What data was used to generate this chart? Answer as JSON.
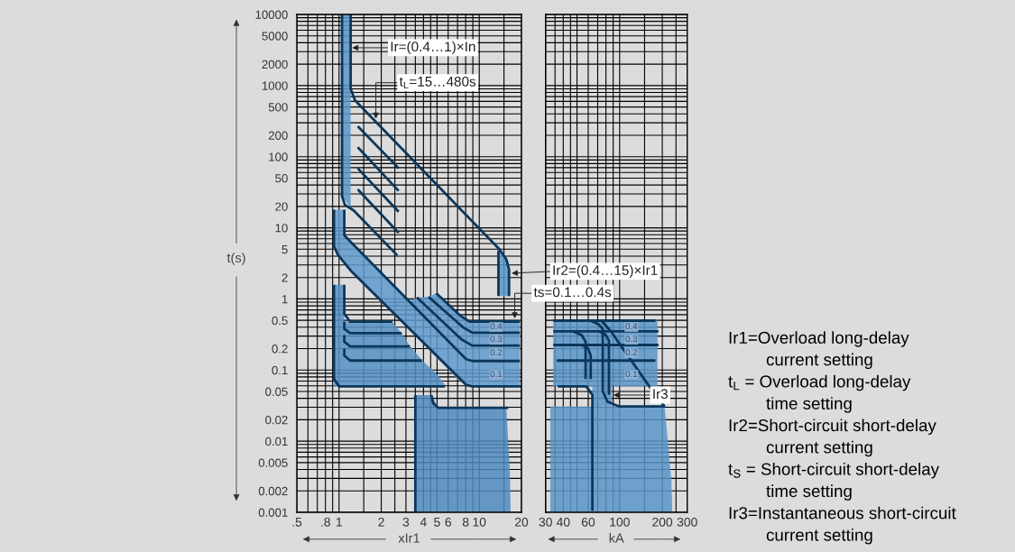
{
  "chart_data": [
    {
      "type": "line",
      "xlabel": "xIr1",
      "ylabel": "t(s)",
      "log": "xy",
      "grid": true,
      "xlim": [
        0.5,
        20
      ],
      "ylim": [
        0.001,
        10000
      ],
      "xticks": [
        {
          "value": 0.5,
          "label": ".5"
        },
        {
          "value": 0.6,
          "label": null
        },
        {
          "value": 0.7,
          "label": null
        },
        {
          "value": 0.8,
          "label": ".8"
        },
        {
          "value": 0.9,
          "label": null
        },
        1,
        {
          "value": 1.5,
          "label": null
        },
        2,
        {
          "value": 2.5,
          "label": null
        },
        3,
        {
          "value": 3.5,
          "label": null
        },
        4,
        {
          "value": 4.5,
          "label": null
        },
        5,
        6,
        {
          "value": 7,
          "label": null
        },
        8,
        {
          "value": 9,
          "label": null
        },
        10,
        {
          "value": 15,
          "label": null
        },
        20
      ],
      "yticks": [
        0.001,
        0.002,
        {
          "value": 0.003,
          "label": null
        },
        {
          "value": 0.004,
          "label": null
        },
        0.005,
        {
          "value": 0.006,
          "label": null
        },
        {
          "value": 0.007,
          "label": null
        },
        {
          "value": 0.008,
          "label": null
        },
        {
          "value": 0.009,
          "label": null
        },
        0.01,
        0.02,
        {
          "value": 0.03,
          "label": null
        },
        {
          "value": 0.04,
          "label": null
        },
        0.05,
        {
          "value": 0.06,
          "label": null
        },
        {
          "value": 0.07,
          "label": null
        },
        {
          "value": 0.08,
          "label": null
        },
        {
          "value": 0.09,
          "label": null
        },
        0.1,
        0.2,
        {
          "value": 0.3,
          "label": null
        },
        {
          "value": 0.4,
          "label": null
        },
        0.5,
        {
          "value": 0.6,
          "label": null
        },
        {
          "value": 0.7,
          "label": null
        },
        {
          "value": 0.8,
          "label": null
        },
        {
          "value": 0.9,
          "label": null
        },
        1,
        2,
        {
          "value": 3,
          "label": null
        },
        {
          "value": 4,
          "label": null
        },
        5,
        {
          "value": 6,
          "label": null
        },
        {
          "value": 7,
          "label": null
        },
        {
          "value": 8,
          "label": null
        },
        {
          "value": 9,
          "label": null
        },
        10,
        20,
        {
          "value": 30,
          "label": null
        },
        {
          "value": 40,
          "label": null
        },
        50,
        {
          "value": 60,
          "label": null
        },
        {
          "value": 70,
          "label": null
        },
        {
          "value": 80,
          "label": null
        },
        {
          "value": 90,
          "label": null
        },
        100,
        200,
        {
          "value": 300,
          "label": null
        },
        {
          "value": 400,
          "label": null
        },
        500,
        {
          "value": 600,
          "label": null
        },
        {
          "value": 700,
          "label": null
        },
        {
          "value": 800,
          "label": null
        },
        {
          "value": 900,
          "label": null
        },
        1000,
        2000,
        {
          "value": 3000,
          "label": null
        },
        {
          "value": 4000,
          "label": null
        },
        5000,
        {
          "value": 6000,
          "label": null
        },
        {
          "value": 7000,
          "label": null
        },
        {
          "value": 8000,
          "label": null
        },
        {
          "value": 9000,
          "label": null
        },
        10000
      ],
      "series": [
        {
          "type": "area",
          "color": "#6ea0cc",
          "x": [
            1.05,
            1.21
          ],
          "values": [
            null,
            null
          ],
          "upper": [
            10000,
            10000
          ],
          "lower": [
            28,
            19
          ]
        },
        {
          "type": "area",
          "color": "#6ea0cc",
          "x": [
            13.7,
            16.3
          ],
          "values": [
            null,
            null
          ],
          "upper": [
            4.8,
            3.2
          ],
          "lower": [
            1.1,
            1.1
          ]
        },
        {
          "type": "area",
          "color": "#73a4d0",
          "x": [
            0.92,
            1.09,
            1.09,
            1.92,
            3.15,
            3.59,
            4.35,
            4.93,
            7.3,
            8.5,
            19.5
          ],
          "values": [
            null,
            null,
            null,
            null,
            null,
            null,
            null,
            null,
            null,
            null,
            null
          ],
          "upper": [
            18,
            18,
            7.8,
            2.51,
            0.93,
            1.05,
            1.07,
            1.21,
            0.585,
            0.48,
            0.48
          ],
          "lower": [
            5.5,
            3.09,
            3.09,
            0.997,
            0.37,
            0.285,
            0.194,
            0.151,
            0.069,
            0.059,
            0.059
          ]
        },
        {
          "type": "area",
          "color": "#6a9cc8",
          "x": [
            0.92,
            1.09,
            1.09,
            2.4,
            2.79,
            3.2,
            3.92,
            4.9,
            5.7
          ],
          "values": [
            null,
            null,
            null,
            null,
            null,
            null,
            null,
            null,
            null
          ],
          "upper": [
            1.58,
            1.58,
            0.48,
            0.48,
            0.33,
            0.22,
            0.136,
            0.092,
            0.062
          ],
          "lower": [
            0.059,
            0.059,
            0.059,
            0.059,
            0.059,
            0.059,
            0.059,
            0.059,
            0.059
          ]
        },
        {
          "type": "area",
          "color": "#6597c4",
          "x": [
            3.5,
            4.55,
            5.1,
            15.6,
            16.5,
            16.7
          ],
          "values": [
            null,
            null,
            null,
            null,
            null,
            null
          ],
          "upper": [
            0.0445,
            0.0445,
            0.0295,
            0.0295,
            0.004,
            0.0012
          ],
          "lower": [
            0.001,
            0.001,
            0.001,
            0.001,
            0.001,
            0.001
          ]
        },
        {
          "type": "line",
          "color": "#0c375a",
          "x": [
            1.05,
            1.05,
            1.1,
            1.27,
            2.6
          ],
          "values": [
            10000,
            28,
            21,
            17.6,
            4.1
          ]
        },
        {
          "type": "line",
          "color": "#0c375a",
          "x": [
            1.21,
            1.21,
            1.3,
            13.9,
            15.6,
            16.3,
            16.3
          ],
          "values": [
            10000,
            900,
            620,
            5.0,
            3.6,
            2.6,
            1.1
          ]
        },
        {
          "type": "line",
          "color": "#0c375a",
          "x": [
            13.7,
            13.7
          ],
          "values": [
            4.8,
            1.1
          ]
        },
        {
          "type": "line",
          "color": "#0c375a",
          "x": [
            1.36,
            2.66
          ],
          "values": [
            268,
            68.6
          ]
        },
        {
          "type": "line",
          "color": "#0c375a",
          "x": [
            1.36,
            2.66
          ],
          "values": [
            136,
            33.1
          ]
        },
        {
          "type": "line",
          "color": "#0c375a",
          "x": [
            1.36,
            2.66
          ],
          "values": [
            68.6,
            16.8
          ]
        },
        {
          "type": "line",
          "color": "#0c375a",
          "x": [
            1.36,
            2.66
          ],
          "values": [
            34.7,
            8.5
          ]
        },
        {
          "type": "line",
          "color": "#0c375a",
          "x": [
            1.09,
            1.09,
            8.07,
            8.9,
            19.5
          ],
          "values": [
            18,
            7.8,
            0.142,
            0.134,
            0.134
          ]
        },
        {
          "type": "line",
          "color": "#0c375a",
          "x": [
            0.92,
            0.92,
            0.98,
            1.21,
            8.07,
            8.9,
            20
          ],
          "values": [
            18,
            5.5,
            4.2,
            2.51,
            0.062,
            0.059,
            0.059
          ]
        },
        {
          "type": "line",
          "color": "#0c375a",
          "x": [
            3.59,
            7.5,
            8.9,
            19.5
          ],
          "values": [
            1.05,
            0.268,
            0.221,
            0.221
          ]
        },
        {
          "type": "line",
          "color": "#0c375a",
          "x": [
            4.35,
            7.7,
            8.9,
            19.5
          ],
          "values": [
            1.07,
            0.396,
            0.336,
            0.336
          ]
        },
        {
          "type": "line",
          "color": "#0c375a",
          "x": [
            4.93,
            7.3,
            8.5,
            19.5
          ],
          "values": [
            1.21,
            0.585,
            0.481,
            0.481
          ]
        },
        {
          "type": "line",
          "color": "#0c375a",
          "x": [
            0.92,
            0.92,
            1.0,
            5.7
          ],
          "values": [
            1.58,
            0.075,
            0.059,
            0.059
          ]
        },
        {
          "type": "line",
          "color": "#0c375a",
          "x": [
            1.09,
            1.09,
            1.2,
            2.4
          ],
          "values": [
            1.58,
            0.62,
            0.48,
            0.48
          ]
        },
        {
          "type": "line",
          "color": "#0c375a",
          "x": [
            1.09,
            1.09,
            1.2,
            2.8
          ],
          "values": [
            0.48,
            0.38,
            0.33,
            0.33
          ]
        },
        {
          "type": "line",
          "color": "#0c375a",
          "x": [
            1.09,
            1.09,
            1.2,
            3.2
          ],
          "values": [
            0.31,
            0.25,
            0.215,
            0.215
          ]
        },
        {
          "type": "line",
          "color": "#0c375a",
          "x": [
            1.09,
            1.09,
            1.2,
            3.9
          ],
          "values": [
            0.2,
            0.16,
            0.136,
            0.136
          ]
        },
        {
          "type": "line",
          "color": "#0c375a",
          "x": [
            3.5,
            3.5
          ],
          "values": [
            0.0445,
            0.001
          ]
        },
        {
          "type": "line",
          "color": "#0c375a",
          "x": [
            4.55,
            4.7,
            5.1,
            16.1
          ],
          "values": [
            0.0445,
            0.034,
            0.0295,
            0.0295
          ]
        }
      ],
      "annotations": [
        {
          "text": "Ir=(0.4…1)×In",
          "x": 1.24,
          "y": 3400
        },
        {
          "text": "t$_{L}$=15…480s",
          "x": 1.83,
          "y": 341
        },
        {
          "text": "Ir2=(0.4…15)×Ir1",
          "x": 17.0,
          "y": 2.3
        },
        {
          "text": "ts=0.1…0.4s",
          "x": 17.9,
          "y": 0.53
        },
        {
          "text": "0.4",
          "x": 13.2,
          "y": 0.404
        },
        {
          "text": "0.3",
          "x": 13.2,
          "y": 0.268
        },
        {
          "text": "0.2",
          "x": 13.2,
          "y": 0.173
        },
        {
          "text": "0.1",
          "x": 13.2,
          "y": 0.086
        }
      ]
    },
    {
      "type": "line",
      "xlabel": "kA",
      "log": "xy",
      "grid": true,
      "tick_labels": "x",
      "xlim": [
        30,
        300
      ],
      "ylim": [
        0.001,
        10000
      ],
      "xticks": [
        30,
        {
          "value": 35,
          "label": null
        },
        40,
        {
          "value": 45,
          "label": null
        },
        {
          "value": 50,
          "label": null
        },
        60,
        {
          "value": 70,
          "label": null
        },
        {
          "value": 80,
          "label": null
        },
        {
          "value": 90,
          "label": null
        },
        100,
        {
          "value": 150,
          "label": null
        },
        200,
        {
          "value": 250,
          "label": null
        },
        300
      ],
      "yticks": [
        0.001,
        0.002,
        {
          "value": 0.003,
          "label": null
        },
        {
          "value": 0.004,
          "label": null
        },
        0.005,
        {
          "value": 0.006,
          "label": null
        },
        {
          "value": 0.007,
          "label": null
        },
        {
          "value": 0.008,
          "label": null
        },
        {
          "value": 0.009,
          "label": null
        },
        0.01,
        0.02,
        {
          "value": 0.03,
          "label": null
        },
        {
          "value": 0.04,
          "label": null
        },
        0.05,
        {
          "value": 0.06,
          "label": null
        },
        {
          "value": 0.07,
          "label": null
        },
        {
          "value": 0.08,
          "label": null
        },
        {
          "value": 0.09,
          "label": null
        },
        0.1,
        0.2,
        {
          "value": 0.3,
          "label": null
        },
        {
          "value": 0.4,
          "label": null
        },
        0.5,
        {
          "value": 0.6,
          "label": null
        },
        {
          "value": 0.7,
          "label": null
        },
        {
          "value": 0.8,
          "label": null
        },
        {
          "value": 0.9,
          "label": null
        },
        1,
        2,
        {
          "value": 3,
          "label": null
        },
        {
          "value": 4,
          "label": null
        },
        5,
        {
          "value": 6,
          "label": null
        },
        {
          "value": 7,
          "label": null
        },
        {
          "value": 8,
          "label": null
        },
        {
          "value": 9,
          "label": null
        },
        10,
        20,
        {
          "value": 30,
          "label": null
        },
        {
          "value": 40,
          "label": null
        },
        50,
        {
          "value": 60,
          "label": null
        },
        {
          "value": 70,
          "label": null
        },
        {
          "value": 80,
          "label": null
        },
        {
          "value": 90,
          "label": null
        },
        100,
        200,
        {
          "value": 300,
          "label": null
        },
        {
          "value": 400,
          "label": null
        },
        500,
        {
          "value": 600,
          "label": null
        },
        {
          "value": 700,
          "label": null
        },
        {
          "value": 800,
          "label": null
        },
        {
          "value": 900,
          "label": null
        },
        1000,
        2000,
        {
          "value": 3000,
          "label": null
        },
        {
          "value": 4000,
          "label": null
        },
        5000,
        {
          "value": 6000,
          "label": null
        },
        {
          "value": 7000,
          "label": null
        },
        {
          "value": 8000,
          "label": null
        },
        {
          "value": 9000,
          "label": null
        },
        10000
      ],
      "series": [
        {
          "type": "area",
          "color": "#6ea0cc",
          "x": [
            34,
            64.2,
            64.2,
            88,
            88,
            185
          ],
          "values": [
            null,
            null,
            null,
            null,
            null,
            null
          ],
          "upper": [
            0.495,
            0.495,
            0.495,
            0.495,
            0.495,
            0.495
          ],
          "lower": [
            0.059,
            0.059,
            0.0307,
            0.0307,
            0.059,
            0.059
          ]
        },
        {
          "type": "area",
          "color": "#6ea0cc",
          "x": [
            32.4,
            208,
            232,
            235
          ],
          "values": [
            null,
            null,
            null,
            null
          ],
          "upper": [
            0.0307,
            0.0307,
            0.0028,
            0.0012
          ],
          "lower": [
            0.001,
            0.001,
            0.001,
            0.001
          ]
        },
        {
          "type": "line",
          "color": "#0c375a",
          "x": [
            34,
            179
          ],
          "values": [
            0.495,
            0.495
          ]
        },
        {
          "type": "line",
          "color": "#0c375a",
          "x": [
            34,
            188
          ],
          "values": [
            0.349,
            0.349
          ]
        },
        {
          "type": "line",
          "color": "#0c375a",
          "x": [
            34,
            188
          ],
          "values": [
            0.225,
            0.225
          ]
        },
        {
          "type": "line",
          "color": "#0c375a",
          "x": [
            36,
            179
          ],
          "values": [
            0.136,
            0.136
          ]
        },
        {
          "type": "line",
          "color": "#0c375a",
          "x": [
            36.6,
            58,
            64.2,
            64.2
          ],
          "values": [
            0.059,
            0.059,
            0.045,
            0.00105
          ]
        },
        {
          "type": "line",
          "color": "#0c375a",
          "x": [
            47,
            54,
            57.5,
            57.5
          ],
          "values": [
            0.349,
            0.31,
            0.25,
            0.075
          ]
        },
        {
          "type": "line",
          "color": "#0c375a",
          "x": [
            54,
            60,
            62.5,
            62.5
          ],
          "values": [
            0.225,
            0.2,
            0.16,
            0.075
          ]
        },
        {
          "type": "line",
          "color": "#0c375a",
          "x": [
            62,
            71,
            76,
            76,
            82,
            99.6,
            208
          ],
          "values": [
            0.495,
            0.44,
            0.38,
            0.05,
            0.036,
            0.0307,
            0.0307
          ]
        },
        {
          "type": "line",
          "color": "#0c375a",
          "x": [
            72,
            80,
            84,
            84
          ],
          "values": [
            0.349,
            0.31,
            0.26,
            0.045
          ]
        },
        {
          "type": "line",
          "color": "#0c375a",
          "x": [
            74.3,
            86.9,
            162,
            208
          ],
          "values": [
            0.495,
            0.349,
            0.059,
            0.0307
          ]
        }
      ],
      "annotations": [
        {
          "text": "0.4",
          "x": 121,
          "y": 0.404
        },
        {
          "text": "0.3",
          "x": 121,
          "y": 0.268
        },
        {
          "text": "0.2",
          "x": 121,
          "y": 0.173
        },
        {
          "text": "0.1",
          "x": 121,
          "y": 0.086
        },
        {
          "text": "Ir3",
          "x": 90.3,
          "y": 0.0445
        }
      ]
    },
    {
      "type": "other",
      "annotations": [
        "Ir1=Overload long-delay\ncurrent setting",
        "t$_{L}$ = Overload long-delay\ntime setting",
        "Ir2=Short-circuit short-delay\ncurrent setting",
        "t$_{S}$ = Short-circuit short-delay\ntime setting",
        "Ir3=Instantaneous short-circuit\ncurrent setting"
      ]
    }
  ]
}
